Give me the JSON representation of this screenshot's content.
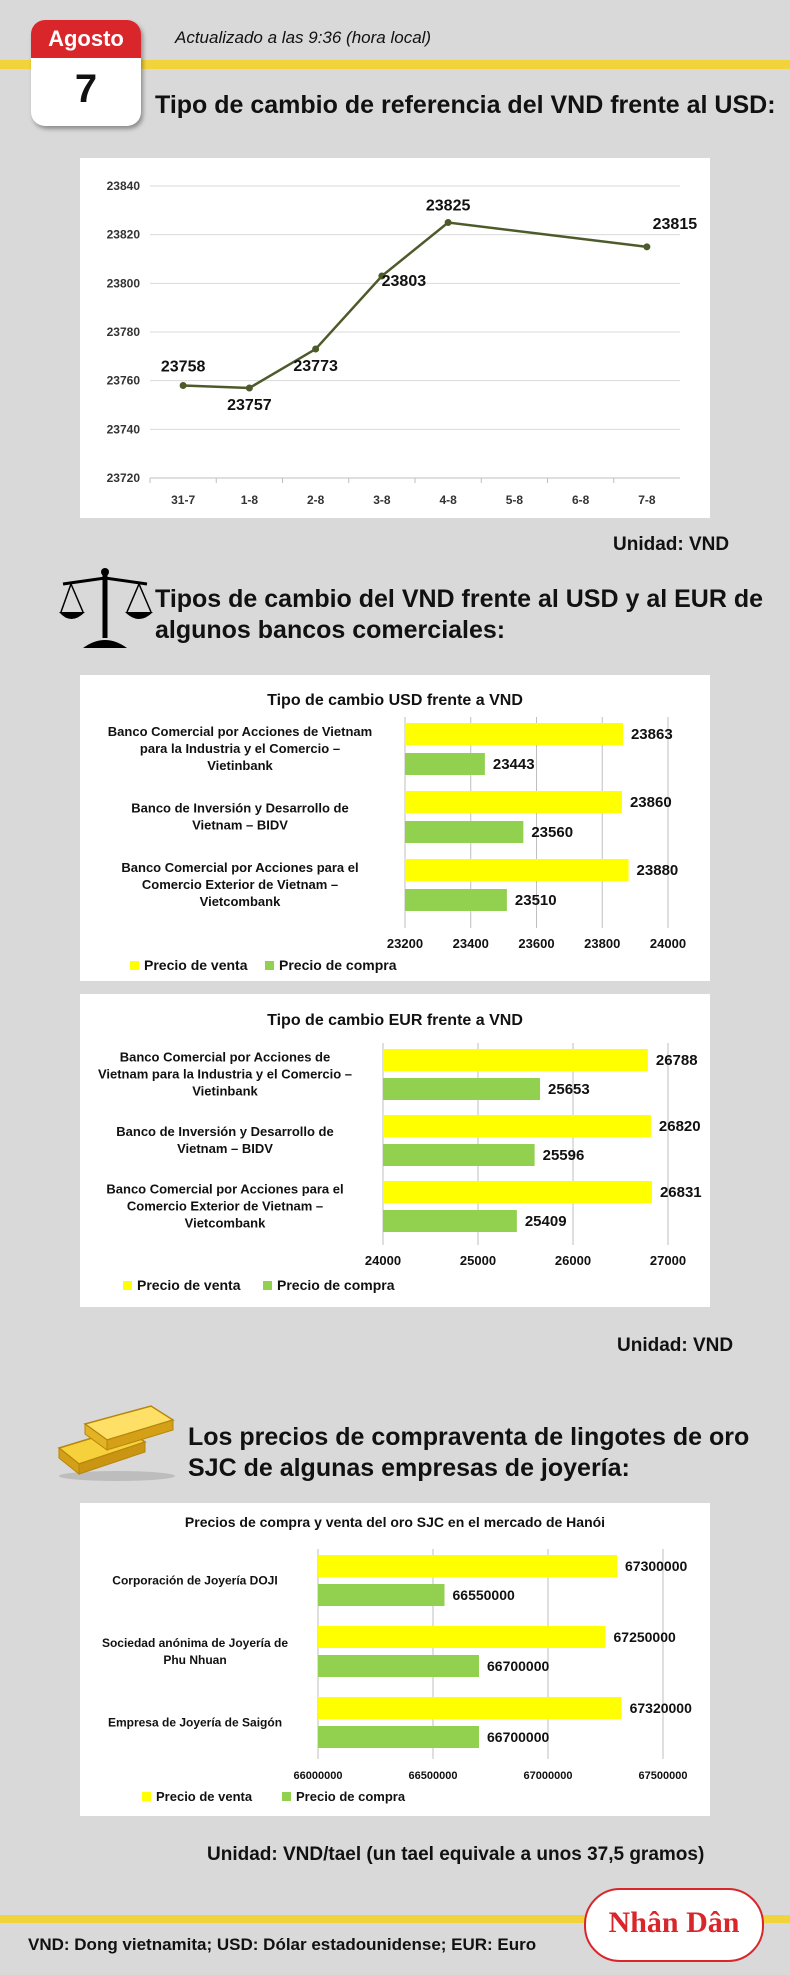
{
  "header": {
    "month": "Agosto",
    "day": "7",
    "updated": "Actualizado a las 9:36 (hora local)"
  },
  "section1": {
    "title": "Tipo de cambio de referencia del VND frente al USD:",
    "unit": "Unidad: VND"
  },
  "section2": {
    "title_line1": "Tipos de cambio del VND frente al USD y al EUR de",
    "title_line2": "algunos bancos comerciales:",
    "unit": "Unidad: VND"
  },
  "section3": {
    "title_line1": "Los precios de compraventa de lingotes de oro",
    "title_line2": "SJC de algunas empresas de joyería:",
    "unit": "Unidad: VND/tael (un tael equivale a unos 37,5 gramos)"
  },
  "footer": {
    "note": "VND: Dong vietnamita; USD: Dólar estadounidense; EUR: Euro",
    "logo": "Nhân Dân"
  },
  "icons": {
    "scales": "scales-icon",
    "gold": "gold-bars-icon"
  },
  "colors": {
    "band": "#f2d43a",
    "red": "#d8262b",
    "line": "#4d5a2a",
    "sell": "#ffff00",
    "buy": "#92d050"
  },
  "chart_data": [
    {
      "type": "line",
      "title": "",
      "x": [
        "31-7",
        "1-8",
        "2-8",
        "3-8",
        "4-8",
        "5-8",
        "6-8",
        "7-8"
      ],
      "series": [
        {
          "values": [
            23758,
            23757,
            23773,
            23803,
            23825,
            null,
            null,
            23815
          ]
        }
      ],
      "data_labels": [
        "23758",
        "23757",
        "23773",
        "23803",
        "23825",
        "23815"
      ],
      "yticks": [
        23720,
        23740,
        23760,
        23780,
        23800,
        23820,
        23840
      ],
      "ylim": [
        23720,
        23840
      ],
      "grid": true
    },
    {
      "type": "bar",
      "orientation": "horizontal",
      "title": "Tipo de cambio USD frente a VND",
      "categories": [
        "Banco Comercial por Acciones de Vietnam|para la Industria y el Comercio –|Vietinbank",
        "Banco de Inversión y Desarrollo de|Vietnam – BIDV",
        "Banco Comercial por Acciones para el|Comercio Exterior de Vietnam –|Vietcombank"
      ],
      "series": [
        {
          "name": "Precio de venta",
          "values": [
            23863,
            23860,
            23880
          ]
        },
        {
          "name": "Precio de compra",
          "values": [
            23443,
            23560,
            23510
          ]
        }
      ],
      "xticks": [
        23200,
        23400,
        23600,
        23800,
        24000
      ],
      "xlim": [
        23200,
        24000
      ],
      "legend": "bottom-left",
      "grid": true
    },
    {
      "type": "bar",
      "orientation": "horizontal",
      "title": "Tipo de cambio EUR frente a VND",
      "categories": [
        "Banco Comercial por Acciones de|Vietnam para la Industria y el Comercio –|Vietinbank",
        "Banco de Inversión y Desarrollo de|Vietnam – BIDV",
        "Banco Comercial por Acciones para el|Comercio Exterior de Vietnam –|Vietcombank"
      ],
      "series": [
        {
          "name": "Precio de venta",
          "values": [
            26788,
            26820,
            26831
          ]
        },
        {
          "name": "Precio de compra",
          "values": [
            25653,
            25596,
            25409
          ]
        }
      ],
      "xticks": [
        24000,
        25000,
        26000,
        27000
      ],
      "xlim": [
        24000,
        27000
      ],
      "legend": "bottom-left",
      "grid": true
    },
    {
      "type": "bar",
      "orientation": "horizontal",
      "title": "Precios de compra y venta del oro SJC en el mercado de Hanói",
      "categories": [
        "Corporación de Joyería DOJI",
        "Sociedad anónima de Joyería de|Phu Nhuan",
        "Empresa de Joyería de Saigón"
      ],
      "series": [
        {
          "name": "Precio de venta",
          "values": [
            67300000,
            67250000,
            67320000
          ]
        },
        {
          "name": "Precio de compra",
          "values": [
            66550000,
            66700000,
            66700000
          ]
        }
      ],
      "xticks": [
        66000000,
        66500000,
        67000000,
        67500000
      ],
      "xlim": [
        66000000,
        67500000
      ],
      "legend": "bottom-left",
      "grid": true
    }
  ]
}
